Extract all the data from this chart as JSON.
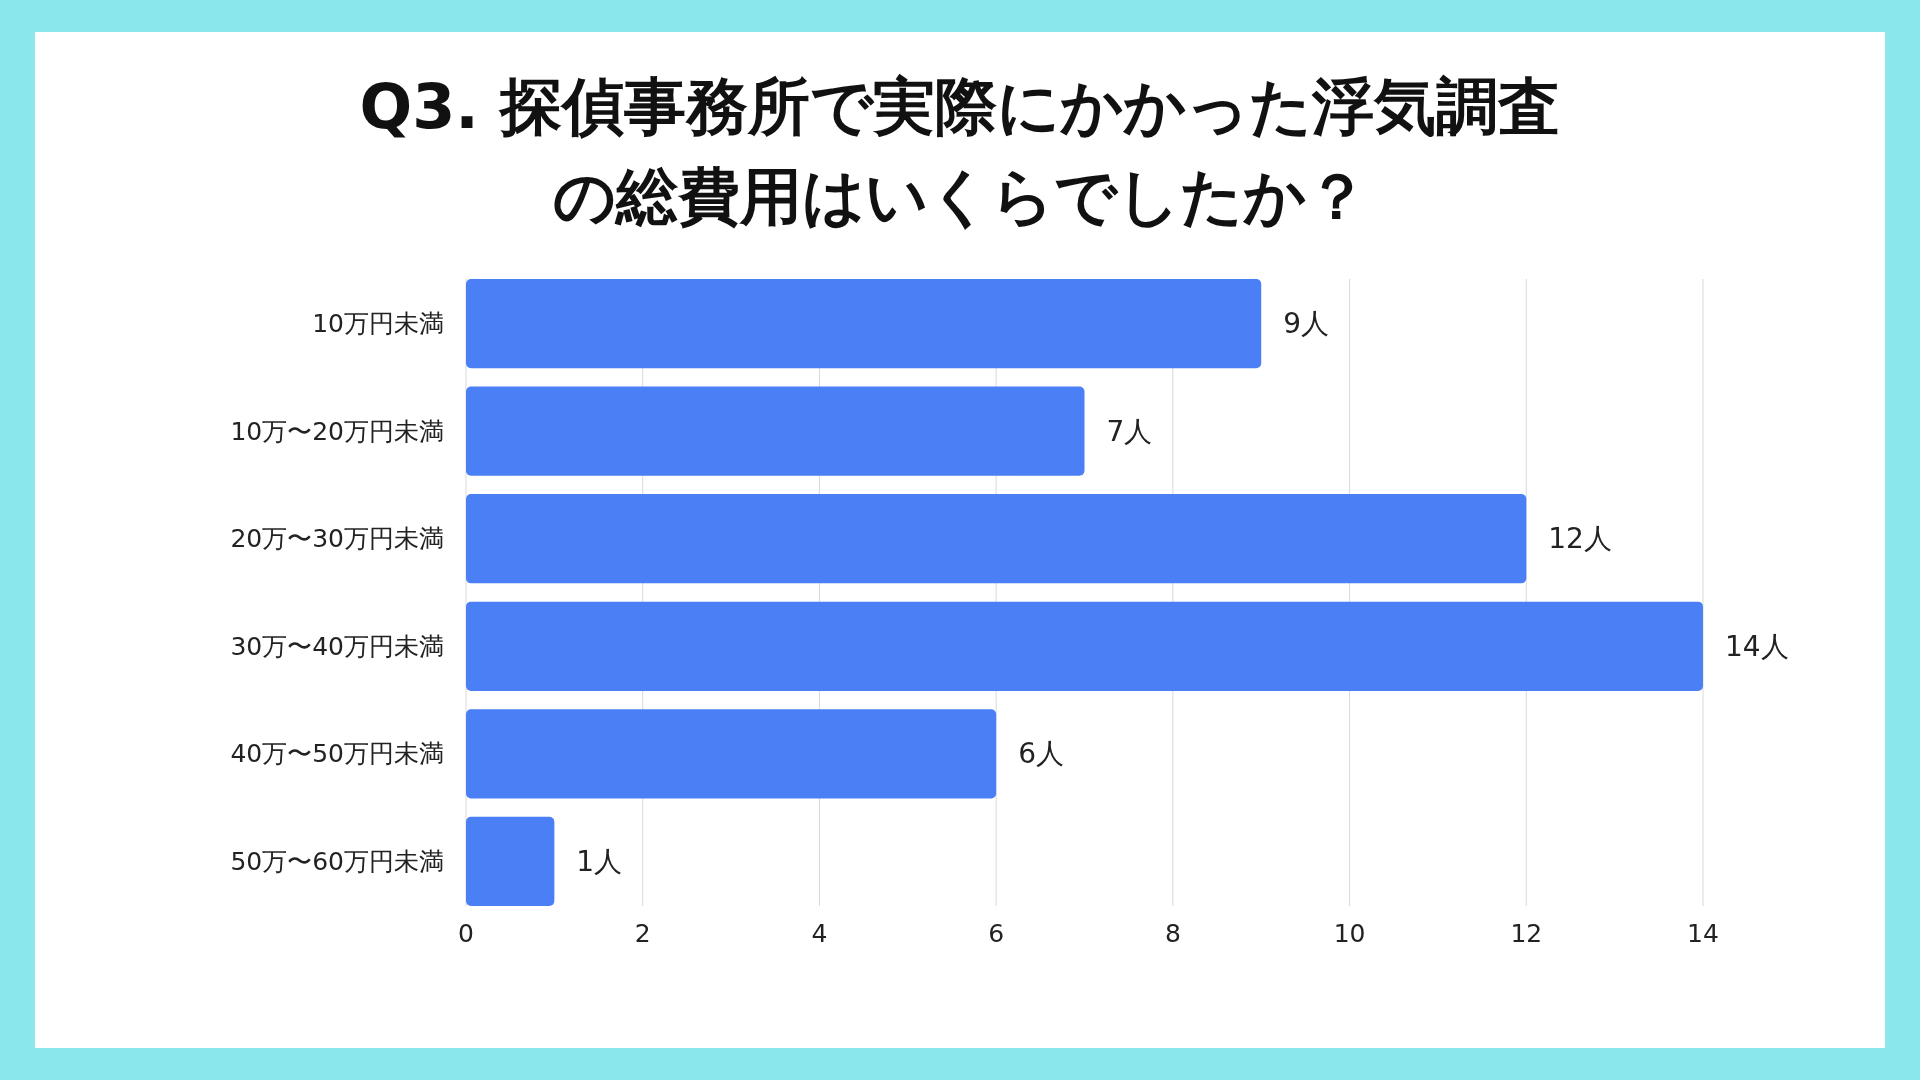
{
  "chart_data": {
    "type": "bar",
    "orientation": "horizontal",
    "title": "Q3. 探偵事務所で実際にかかった浮気調査の総費用はいくらでしたか？",
    "categories": [
      "10万円未満",
      "10万〜20万円未満",
      "20万〜30万円未満",
      "30万〜40万円未満",
      "40万〜50万円未満",
      "50万〜60万円未満"
    ],
    "values": [
      9,
      7,
      12,
      14,
      6,
      1
    ],
    "value_labels": [
      "9人",
      "7人",
      "12人",
      "14人",
      "6人",
      "1人"
    ],
    "color": "#4a7ff5",
    "xlim": [
      0,
      14
    ],
    "xticks": [
      0,
      2,
      4,
      6,
      8,
      10,
      12,
      14
    ],
    "grid": "x"
  }
}
